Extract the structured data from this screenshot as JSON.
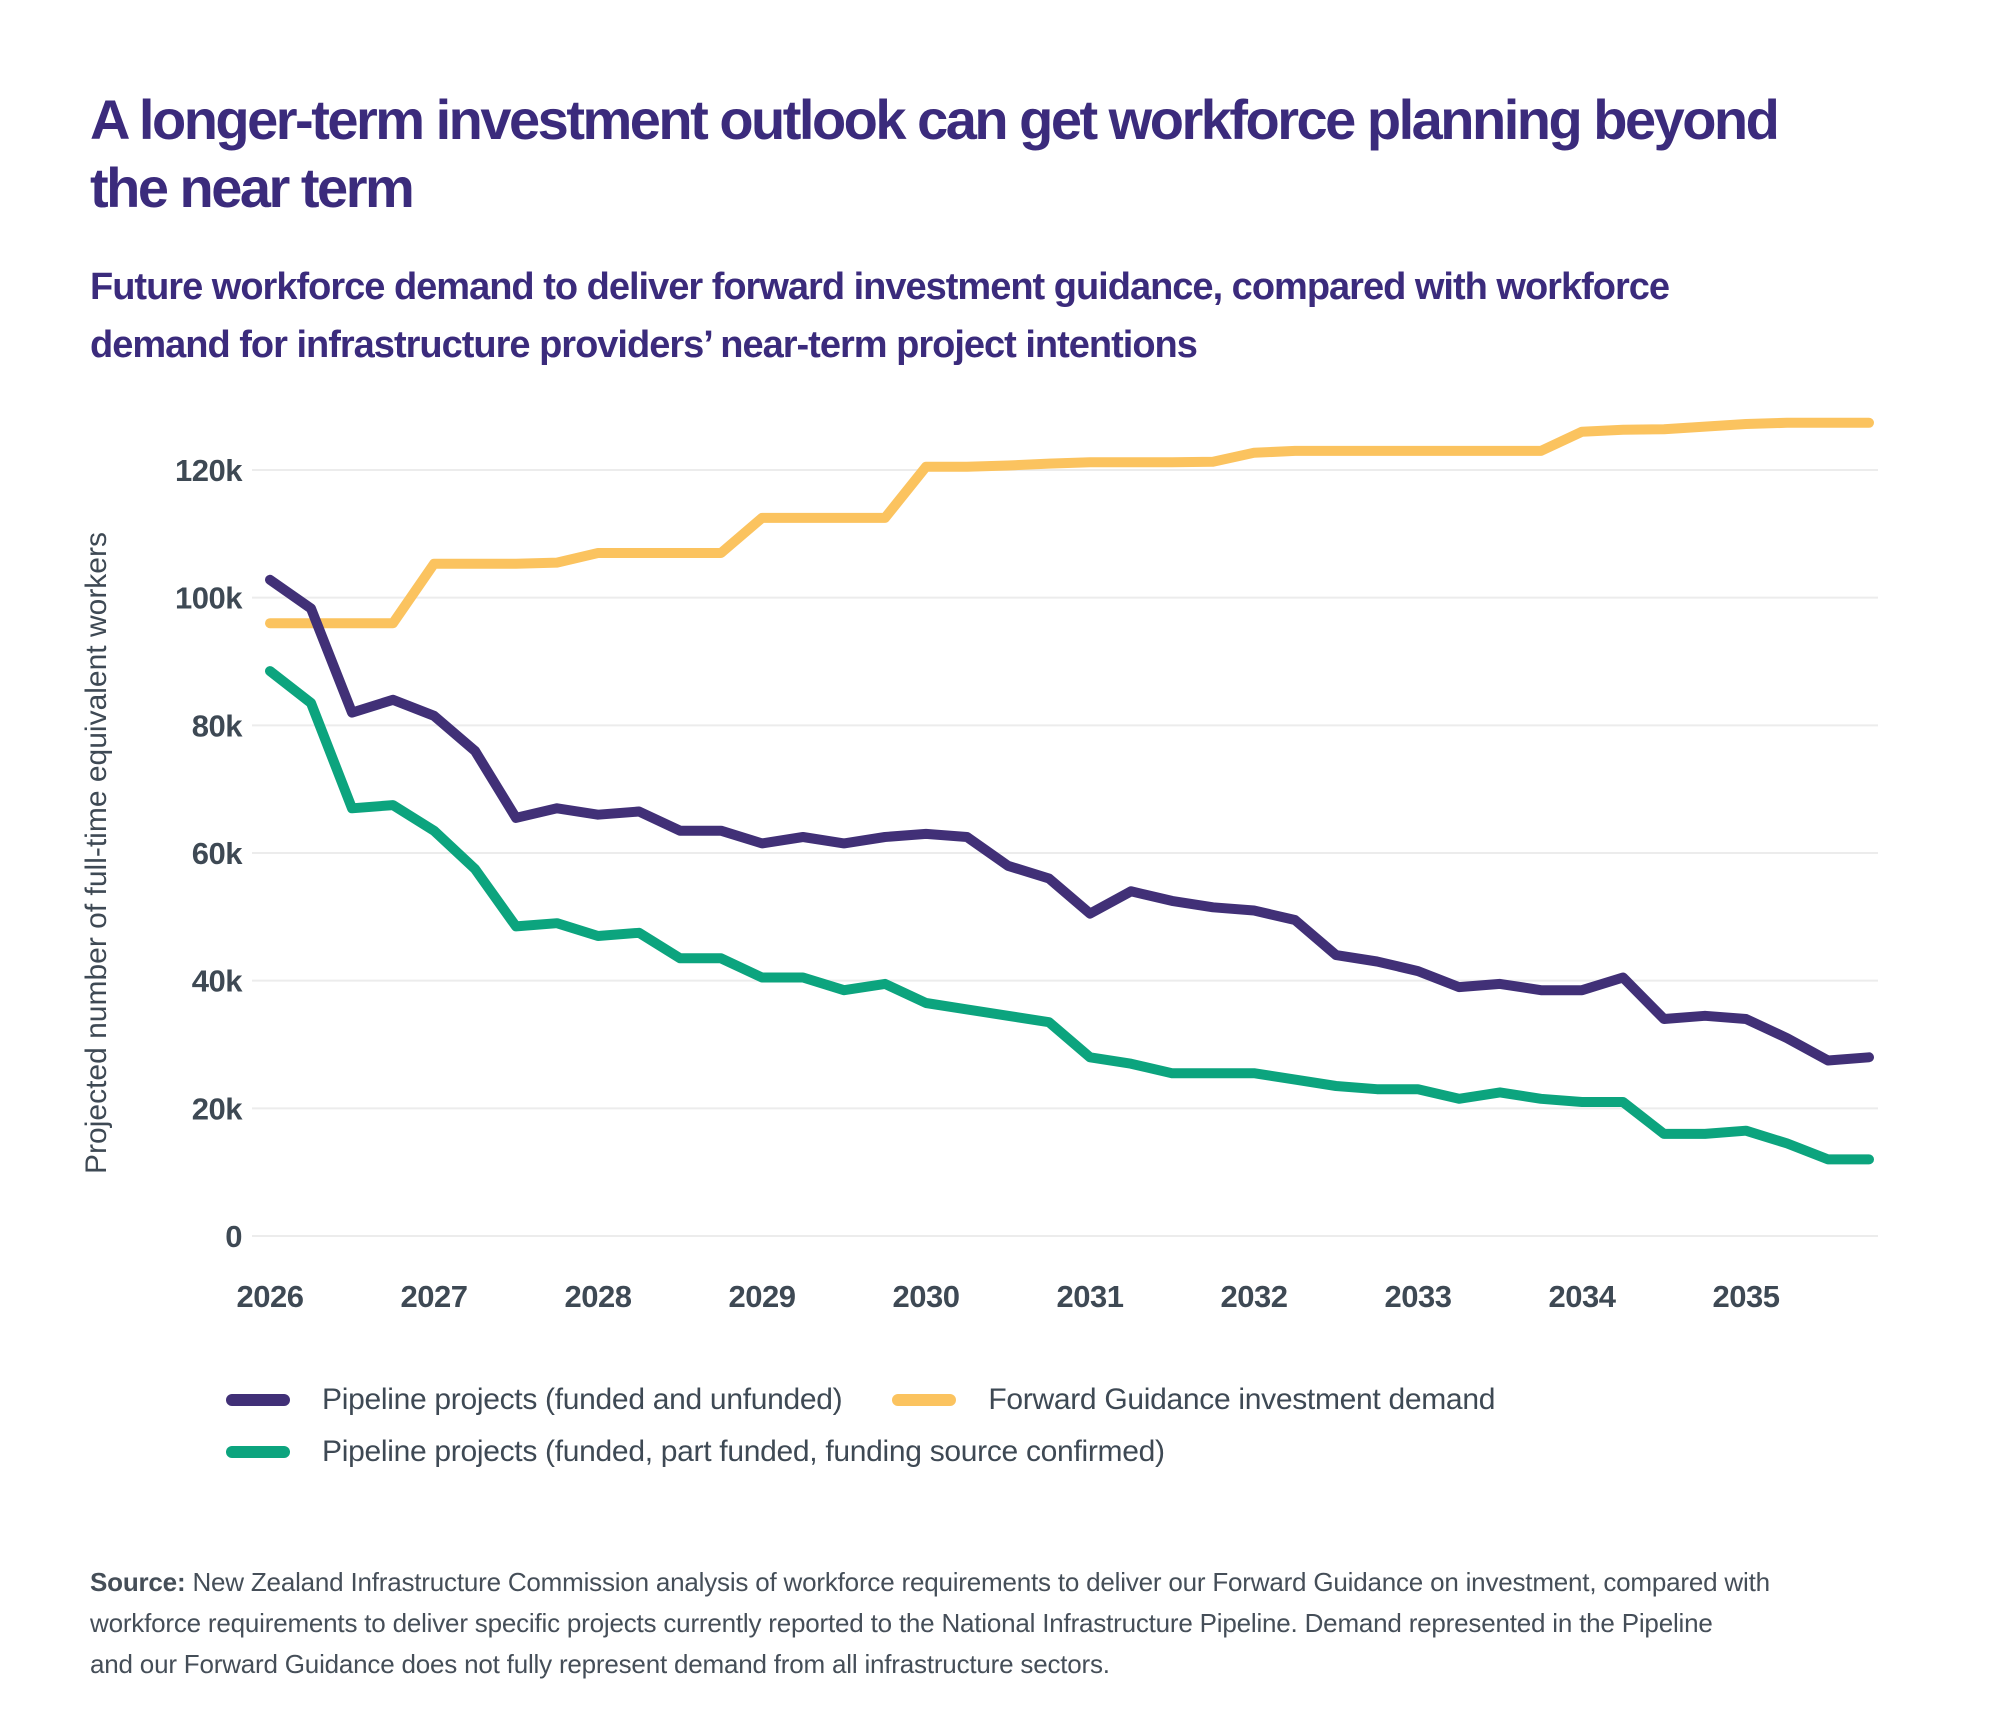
{
  "header": {
    "title_lines": [
      "A longer-term investment outlook can get workforce planning beyond",
      "the near term"
    ],
    "subtitle_lines": [
      "Future workforce demand to deliver forward investment guidance, compared with workforce",
      "demand for infrastructure providers’ near-term project intentions"
    ]
  },
  "colors": {
    "title": "#3B2B7C",
    "axis_text": "#3E4954",
    "grid": "#ECECEC",
    "source_text": "#454E58",
    "background": "#FFFFFF",
    "purple_series": "#413077",
    "yellow_series": "#FBC35F",
    "green_series": "#0CA47E"
  },
  "chart_data": {
    "type": "line",
    "title": "",
    "xlabel": "",
    "ylabel": "Projected number of full-time equivalent workers",
    "unit": "thousands of full-time equivalent workers",
    "grid": true,
    "legend_position": "bottom",
    "ylim": [
      0,
      130
    ],
    "y_tick_values": [
      0,
      20,
      40,
      60,
      80,
      100,
      120
    ],
    "y_tick_labels": [
      "0",
      "20k",
      "40k",
      "60k",
      "80k",
      "100k",
      "120k"
    ],
    "x_tick_labels": [
      "2026",
      "2027",
      "2028",
      "2029",
      "2030",
      "2031",
      "2032",
      "2033",
      "2034",
      "2035"
    ],
    "x": [
      2026,
      2026.25,
      2026.5,
      2026.75,
      2027,
      2027.25,
      2027.5,
      2027.75,
      2028,
      2028.25,
      2028.5,
      2028.75,
      2029,
      2029.25,
      2029.5,
      2029.75,
      2030,
      2030.25,
      2030.5,
      2030.75,
      2031,
      2031.25,
      2031.5,
      2031.75,
      2032,
      2032.25,
      2032.5,
      2032.75,
      2033,
      2033.25,
      2033.5,
      2033.75,
      2034,
      2034.25,
      2034.5,
      2034.75,
      2035,
      2035.25,
      2035.5,
      2035.75
    ],
    "series": [
      {
        "name": "Pipeline projects (funded and unfunded)",
        "color": "#413077",
        "values": [
          102.8,
          98.3,
          82,
          84,
          81.5,
          76,
          65.5,
          67,
          66,
          66.5,
          63.5,
          63.5,
          61.5,
          62.5,
          61.5,
          62.5,
          63,
          62.5,
          58,
          56,
          50.5,
          54,
          52.5,
          51.5,
          51,
          49.5,
          44,
          43,
          41.5,
          39,
          39.5,
          38.5,
          38.5,
          40.5,
          34,
          34.5,
          34,
          31,
          27.5,
          28
        ]
      },
      {
        "name": "Forward Guidance investment demand",
        "color": "#FBC35F",
        "values": [
          96,
          96,
          96,
          96,
          105.3,
          105.3,
          105.3,
          105.5,
          107,
          107,
          107,
          107,
          112.5,
          112.5,
          112.5,
          112.5,
          120.5,
          120.5,
          120.7,
          121,
          121.2,
          121.2,
          121.2,
          121.3,
          122.7,
          123,
          123,
          123,
          123,
          123,
          123,
          123,
          126,
          126.3,
          126.4,
          126.8,
          127.2,
          127.4,
          127.4,
          127.4
        ]
      },
      {
        "name": "Pipeline projects (funded, part funded, funding source confirmed)",
        "color": "#0CA47E",
        "values": [
          88.5,
          83.5,
          67,
          67.5,
          63.5,
          57.5,
          48.5,
          49,
          47,
          47.5,
          43.5,
          43.5,
          40.5,
          40.5,
          38.5,
          39.5,
          36.5,
          35.5,
          34.5,
          33.5,
          28,
          27,
          25.5,
          25.5,
          25.5,
          24.5,
          23.5,
          23,
          23,
          21.5,
          22.5,
          21.5,
          21,
          21,
          16,
          16,
          16.5,
          14.5,
          12,
          12
        ]
      }
    ]
  },
  "legend": {
    "order_note": "row 1: purple then yellow; row 2: green"
  },
  "source": {
    "label": "Source:",
    "lines": [
      "New Zealand Infrastructure Commission analysis of workforce requirements to deliver our Forward Guidance on investment, compared with",
      "workforce requirements to deliver specific projects currently reported to the National Infrastructure Pipeline. Demand represented in the Pipeline",
      "and our Forward Guidance does not fully represent demand from all infrastructure sectors."
    ]
  }
}
